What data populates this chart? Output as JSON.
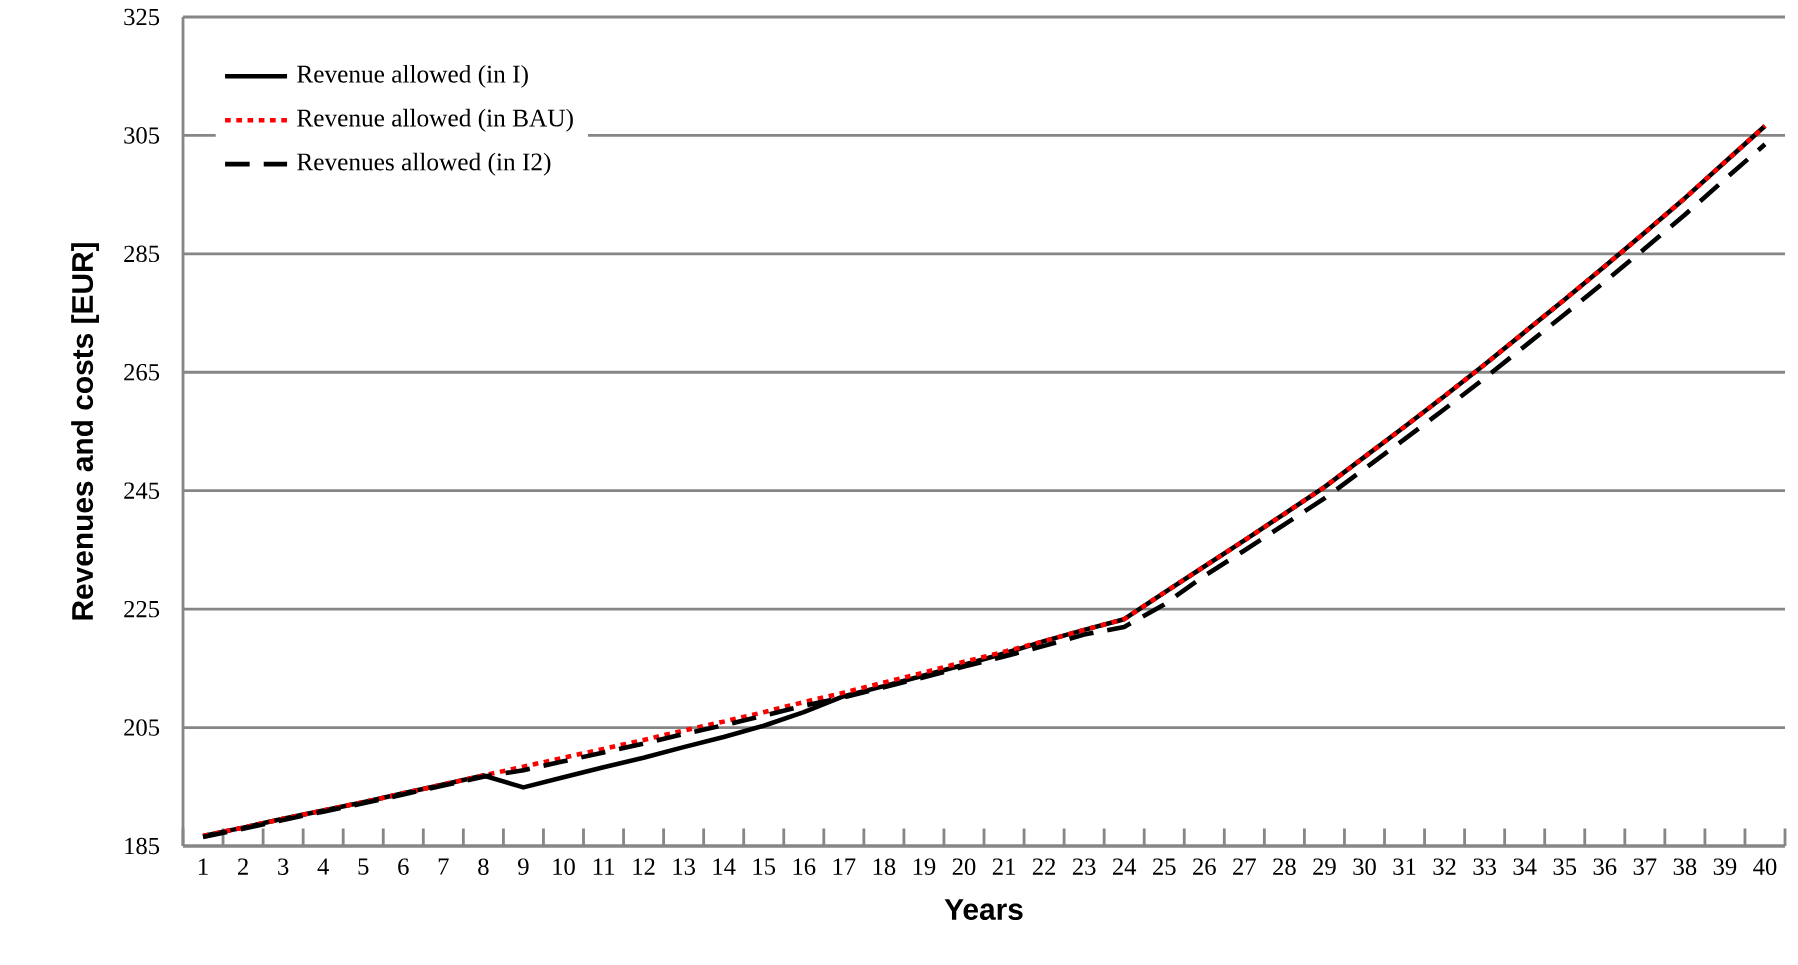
{
  "chart_data": {
    "type": "line",
    "xlabel": "Years",
    "ylabel": "Revenues and costs [EUR]",
    "categories": [
      "1",
      "2",
      "3",
      "4",
      "5",
      "6",
      "7",
      "8",
      "9",
      "10",
      "11",
      "12",
      "13",
      "14",
      "15",
      "16",
      "17",
      "18",
      "19",
      "20",
      "21",
      "22",
      "23",
      "24",
      "25",
      "26",
      "27",
      "28",
      "29",
      "30",
      "31",
      "32",
      "33",
      "34",
      "35",
      "36",
      "37",
      "38",
      "39",
      "40"
    ],
    "ylim": [
      185,
      325
    ],
    "yticks": [
      185,
      205,
      225,
      245,
      265,
      285,
      305,
      325
    ],
    "grid": "y",
    "legend": "top left",
    "series": [
      {
        "name": "Revenue allowed (in I)",
        "color": "#000000",
        "line_style": "solid",
        "values": [
          186.7,
          188.1,
          189.6,
          191.0,
          192.4,
          193.9,
          195.4,
          196.9,
          194.9,
          196.6,
          198.3,
          199.9,
          201.7,
          203.4,
          205.3,
          207.6,
          210.3,
          212.0,
          213.8,
          215.6,
          217.5,
          219.6,
          221.5,
          223.3,
          227.8,
          232.2,
          236.6,
          241.1,
          245.6,
          250.7,
          255.8,
          261.0,
          266.3,
          271.8,
          277.3,
          282.9,
          288.6,
          294.4,
          300.5,
          306.6
        ]
      },
      {
        "name": "Revenue allowed (in BAU)",
        "color": "#ff0000",
        "line_style": "dotted",
        "values": [
          186.7,
          188.1,
          189.6,
          191.0,
          192.4,
          193.9,
          195.4,
          196.9,
          198.4,
          199.9,
          201.4,
          202.9,
          204.5,
          206.0,
          207.6,
          209.3,
          210.9,
          212.6,
          214.3,
          216.1,
          217.8,
          219.6,
          221.5,
          223.3,
          227.8,
          232.2,
          236.6,
          241.1,
          245.6,
          250.7,
          255.8,
          261.0,
          266.3,
          271.8,
          277.3,
          282.9,
          288.6,
          294.4,
          300.5,
          306.6
        ]
      },
      {
        "name": "Revenues allowed (in I2)",
        "color": "#000000",
        "line_style": "dashed",
        "values": [
          186.5,
          187.9,
          189.4,
          190.8,
          192.2,
          193.7,
          195.2,
          196.7,
          197.8,
          199.3,
          200.8,
          202.3,
          203.9,
          205.4,
          207.0,
          208.7,
          210.1,
          211.8,
          213.5,
          215.3,
          217.0,
          218.8,
          220.7,
          222.0,
          225.8,
          230.6,
          234.9,
          239.3,
          243.7,
          248.7,
          253.7,
          258.8,
          264.0,
          269.4,
          274.8,
          280.3,
          285.9,
          291.6,
          297.6,
          303.5
        ]
      }
    ]
  }
}
